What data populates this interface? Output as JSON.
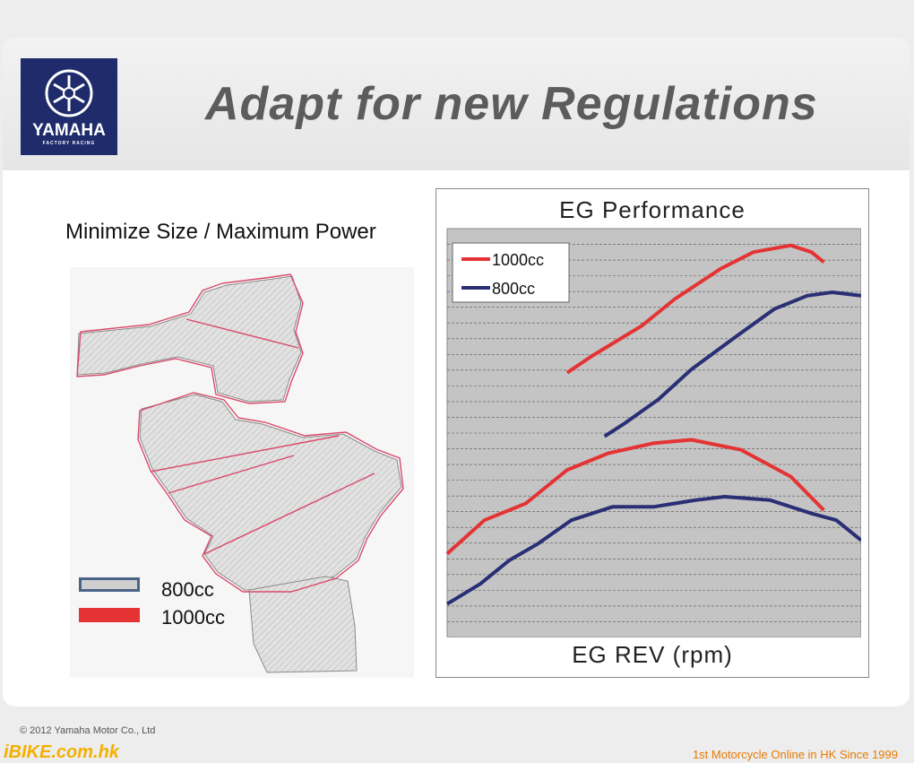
{
  "header": {
    "title": "Adapt for new Regulations",
    "logo_brand": "YAMAHA",
    "logo_sub": "FACTORY RACING"
  },
  "engine_section": {
    "heading": "Minimize Size / Maximum Power",
    "legend": [
      {
        "label": "800cc",
        "color": "#4a6488"
      },
      {
        "label": "1000cc",
        "color": "#e53333"
      }
    ]
  },
  "chart_data": {
    "type": "line",
    "title": "EG Performance",
    "xlabel": "EG REV (rpm)",
    "ylabel": "",
    "grid": true,
    "legend_position": "top-left",
    "series": [
      {
        "name": "1000cc",
        "color": "#e53333",
        "group": "upper",
        "points": [
          [
            0.29,
            0.79
          ],
          [
            0.35,
            0.84
          ],
          [
            0.47,
            0.93
          ],
          [
            0.55,
            1.01
          ],
          [
            0.66,
            1.1
          ],
          [
            0.74,
            1.15
          ],
          [
            0.83,
            1.17
          ],
          [
            0.88,
            1.15
          ],
          [
            0.91,
            1.12
          ]
        ]
      },
      {
        "name": "800cc",
        "color": "#2a2f75",
        "group": "upper",
        "points": [
          [
            0.38,
            0.6
          ],
          [
            0.43,
            0.64
          ],
          [
            0.51,
            0.71
          ],
          [
            0.59,
            0.8
          ],
          [
            0.7,
            0.9
          ],
          [
            0.79,
            0.98
          ],
          [
            0.87,
            1.02
          ],
          [
            0.93,
            1.03
          ],
          [
            1.0,
            1.02
          ]
        ]
      },
      {
        "name": "1000cc",
        "color": "#e53333",
        "group": "lower",
        "points": [
          [
            0.0,
            0.25
          ],
          [
            0.09,
            0.35
          ],
          [
            0.19,
            0.4
          ],
          [
            0.29,
            0.5
          ],
          [
            0.39,
            0.55
          ],
          [
            0.5,
            0.58
          ],
          [
            0.59,
            0.59
          ],
          [
            0.71,
            0.56
          ],
          [
            0.83,
            0.48
          ],
          [
            0.91,
            0.38
          ]
        ]
      },
      {
        "name": "800cc",
        "color": "#2a2f75",
        "group": "lower",
        "points": [
          [
            0.0,
            0.1
          ],
          [
            0.08,
            0.16
          ],
          [
            0.15,
            0.23
          ],
          [
            0.22,
            0.28
          ],
          [
            0.3,
            0.35
          ],
          [
            0.4,
            0.39
          ],
          [
            0.5,
            0.39
          ],
          [
            0.6,
            0.41
          ],
          [
            0.67,
            0.42
          ],
          [
            0.78,
            0.41
          ],
          [
            0.88,
            0.37
          ],
          [
            0.94,
            0.35
          ],
          [
            1.0,
            0.29
          ]
        ]
      }
    ]
  },
  "footer": {
    "copyright": "© 2012 Yamaha Motor Co., Ltd",
    "site": "iBIKE.com.hk",
    "tagline": "1st  Motorcycle Online in HK Since 1999"
  }
}
